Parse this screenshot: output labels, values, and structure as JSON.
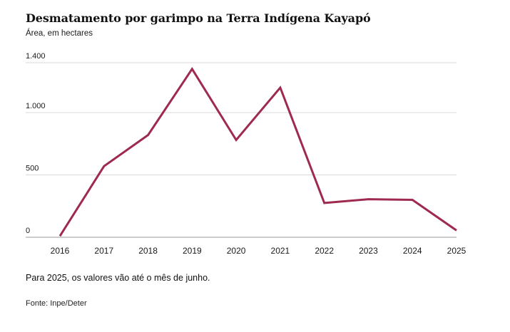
{
  "header": {
    "title": "Desmatamento por garimpo na Terra Indígena Kayapó",
    "subtitle": "Área, em hectares"
  },
  "chart_data": {
    "type": "line",
    "title": "Desmatamento por garimpo na Terra Indígena Kayapó",
    "ylabel": "Área, em hectares",
    "categories": [
      "2016",
      "2017",
      "2018",
      "2019",
      "2020",
      "2021",
      "2022",
      "2023",
      "2024",
      "2025"
    ],
    "values": [
      10,
      570,
      820,
      1350,
      780,
      1200,
      275,
      305,
      300,
      55
    ],
    "ylim": [
      0,
      1400
    ],
    "yticks": {
      "values": [
        0,
        500,
        1000,
        1400
      ],
      "labels": [
        "0",
        "500",
        "1.000",
        "1.400"
      ]
    },
    "grid": true,
    "legend": false,
    "colors": {
      "line": "#9e2b4f",
      "gridline": "#d9d9d9",
      "axis": "#999999",
      "tick_text": "#1a1a1a"
    }
  },
  "notes": {
    "annotation": "Para 2025, os valores vão até o mês de junho.",
    "source": "Fonte: Inpe/Deter"
  }
}
